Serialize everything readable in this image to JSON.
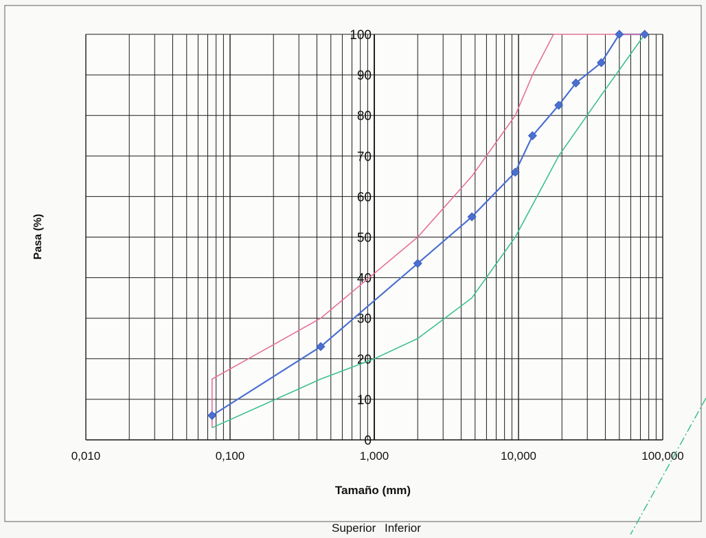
{
  "chart_data": {
    "type": "line",
    "title": "",
    "xlabel": "Tamaño (mm)",
    "ylabel": "Pasa (%)",
    "x_scale": "log",
    "xlim": [
      0.01,
      100
    ],
    "ylim": [
      0,
      100
    ],
    "x_ticks": [
      {
        "value": 0.01,
        "label": "0,010"
      },
      {
        "value": 0.1,
        "label": "0,100"
      },
      {
        "value": 1,
        "label": "1,000"
      },
      {
        "value": 10,
        "label": "10,000"
      },
      {
        "value": 100,
        "label": "100,000"
      }
    ],
    "y_ticks": [
      0,
      10,
      20,
      30,
      40,
      50,
      60,
      70,
      80,
      90,
      100
    ],
    "grid": true,
    "series": [
      {
        "name": "",
        "color": "#4a6fd0",
        "marker": "diamond",
        "points": [
          [
            0.075,
            6
          ],
          [
            0.425,
            23
          ],
          [
            2.0,
            43.5
          ],
          [
            4.75,
            55
          ],
          [
            9.5,
            66
          ],
          [
            12.5,
            75
          ],
          [
            19.0,
            82.5
          ],
          [
            25.0,
            88
          ],
          [
            37.5,
            93
          ],
          [
            50.0,
            100
          ],
          [
            75.0,
            100
          ]
        ]
      },
      {
        "name": "Superior",
        "color": "#e5709a",
        "marker": "none",
        "points": [
          [
            0.075,
            3
          ],
          [
            0.075,
            15
          ],
          [
            0.425,
            30
          ],
          [
            2.0,
            50
          ],
          [
            4.75,
            65
          ],
          [
            9.5,
            80
          ],
          [
            12.5,
            90
          ],
          [
            17.5,
            100
          ],
          [
            75.0,
            100
          ]
        ]
      },
      {
        "name": "Inferior",
        "color": "#3cc08a",
        "marker": "none",
        "points": [
          [
            0.075,
            3
          ],
          [
            0.425,
            15
          ],
          [
            1.0,
            20
          ],
          [
            2.0,
            25
          ],
          [
            4.75,
            35
          ],
          [
            9.5,
            50
          ],
          [
            19.0,
            70
          ],
          [
            37.5,
            85
          ],
          [
            75.0,
            100
          ]
        ]
      }
    ],
    "legend_labels": [
      "Superior",
      "Inferior"
    ]
  }
}
